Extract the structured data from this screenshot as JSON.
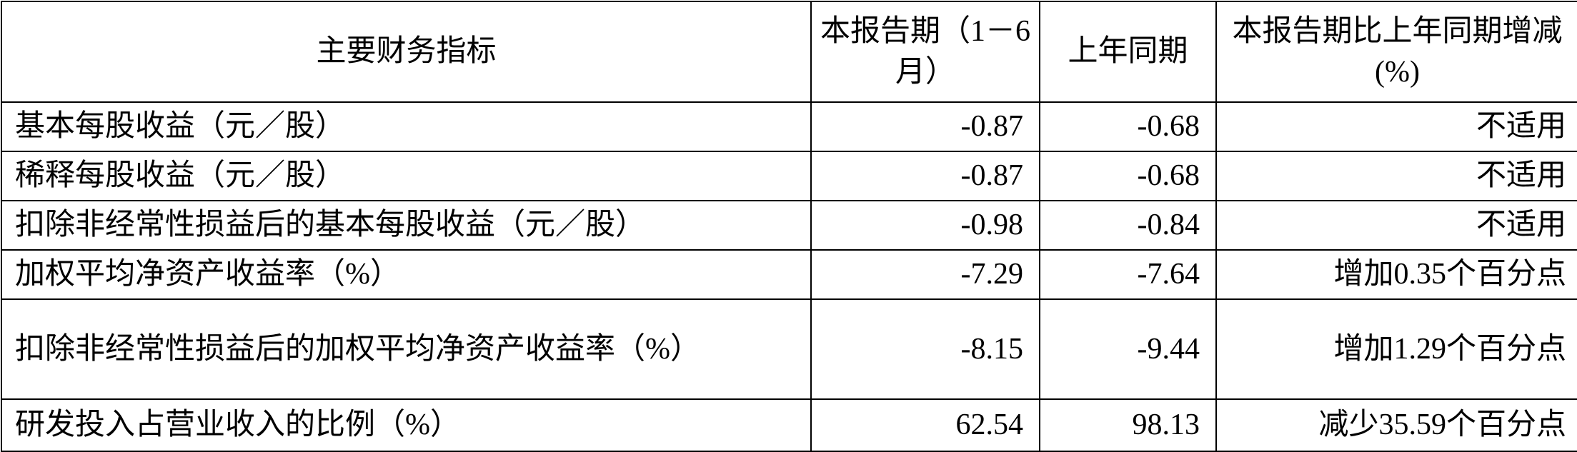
{
  "table": {
    "headers": [
      "主要财务指标",
      "本报告期（1－6月）",
      "上年同期",
      "本报告期比上年同期增减(%)"
    ],
    "rows": [
      {
        "indicator": "基本每股收益（元／股）",
        "current": "-0.87",
        "prior": "-0.68",
        "change": "不适用"
      },
      {
        "indicator": "稀释每股收益（元／股）",
        "current": "-0.87",
        "prior": "-0.68",
        "change": "不适用"
      },
      {
        "indicator": "扣除非经常性损益后的基本每股收益（元／股）",
        "current": "-0.98",
        "prior": "-0.84",
        "change": "不适用"
      },
      {
        "indicator": "加权平均净资产收益率（%）",
        "current": "-7.29",
        "prior": "-7.64",
        "change": "增加0.35个百分点"
      },
      {
        "indicator": "扣除非经常性损益后的加权平均净资产收益率（%）",
        "current": "-8.15",
        "prior": "-9.44",
        "change": "增加1.29个百分点"
      },
      {
        "indicator": "研发投入占营业收入的比例（%）",
        "current": "62.54",
        "prior": "98.13",
        "change": "减少35.59个百分点"
      }
    ]
  }
}
